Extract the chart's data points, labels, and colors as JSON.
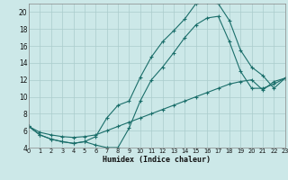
{
  "xlabel": "Humidex (Indice chaleur)",
  "bg_color": "#cce8e8",
  "grid_color": "#aacccc",
  "line_color": "#1a6e6a",
  "xlim": [
    0,
    23
  ],
  "ylim": [
    4,
    21
  ],
  "xticks": [
    0,
    1,
    2,
    3,
    4,
    5,
    6,
    7,
    8,
    9,
    10,
    11,
    12,
    13,
    14,
    15,
    16,
    17,
    18,
    19,
    20,
    21,
    22,
    23
  ],
  "yticks": [
    4,
    6,
    8,
    10,
    12,
    14,
    16,
    18,
    20
  ],
  "line1_x": [
    0,
    1,
    2,
    3,
    4,
    5,
    6,
    7,
    8,
    9,
    10,
    11,
    12,
    13,
    14,
    15,
    16,
    17,
    18,
    19,
    20,
    21,
    22,
    23
  ],
  "line1_y": [
    6.5,
    5.5,
    5.0,
    4.7,
    4.5,
    4.7,
    4.3,
    4.0,
    4.0,
    6.3,
    9.5,
    12.0,
    13.5,
    15.2,
    17.0,
    18.5,
    19.3,
    19.5,
    16.5,
    13.0,
    11.0,
    11.0,
    11.5,
    12.2
  ],
  "line2_x": [
    0,
    1,
    2,
    3,
    4,
    5,
    6,
    7,
    8,
    9,
    10,
    11,
    12,
    13,
    14,
    15,
    16,
    17,
    18,
    19,
    20,
    21,
    22,
    23
  ],
  "line2_y": [
    6.5,
    5.5,
    5.0,
    4.7,
    4.5,
    4.7,
    5.3,
    7.5,
    9.0,
    9.5,
    12.3,
    14.7,
    16.5,
    17.8,
    19.2,
    21.0,
    21.2,
    21.0,
    19.0,
    15.5,
    13.5,
    12.5,
    11.0,
    12.2
  ],
  "line3_x": [
    0,
    1,
    2,
    3,
    4,
    5,
    6,
    7,
    8,
    9,
    10,
    11,
    12,
    13,
    14,
    15,
    16,
    17,
    18,
    19,
    20,
    21,
    22,
    23
  ],
  "line3_y": [
    6.5,
    5.8,
    5.5,
    5.3,
    5.2,
    5.3,
    5.5,
    6.0,
    6.5,
    7.0,
    7.5,
    8.0,
    8.5,
    9.0,
    9.5,
    10.0,
    10.5,
    11.0,
    11.5,
    11.8,
    12.0,
    10.8,
    11.8,
    12.2
  ]
}
